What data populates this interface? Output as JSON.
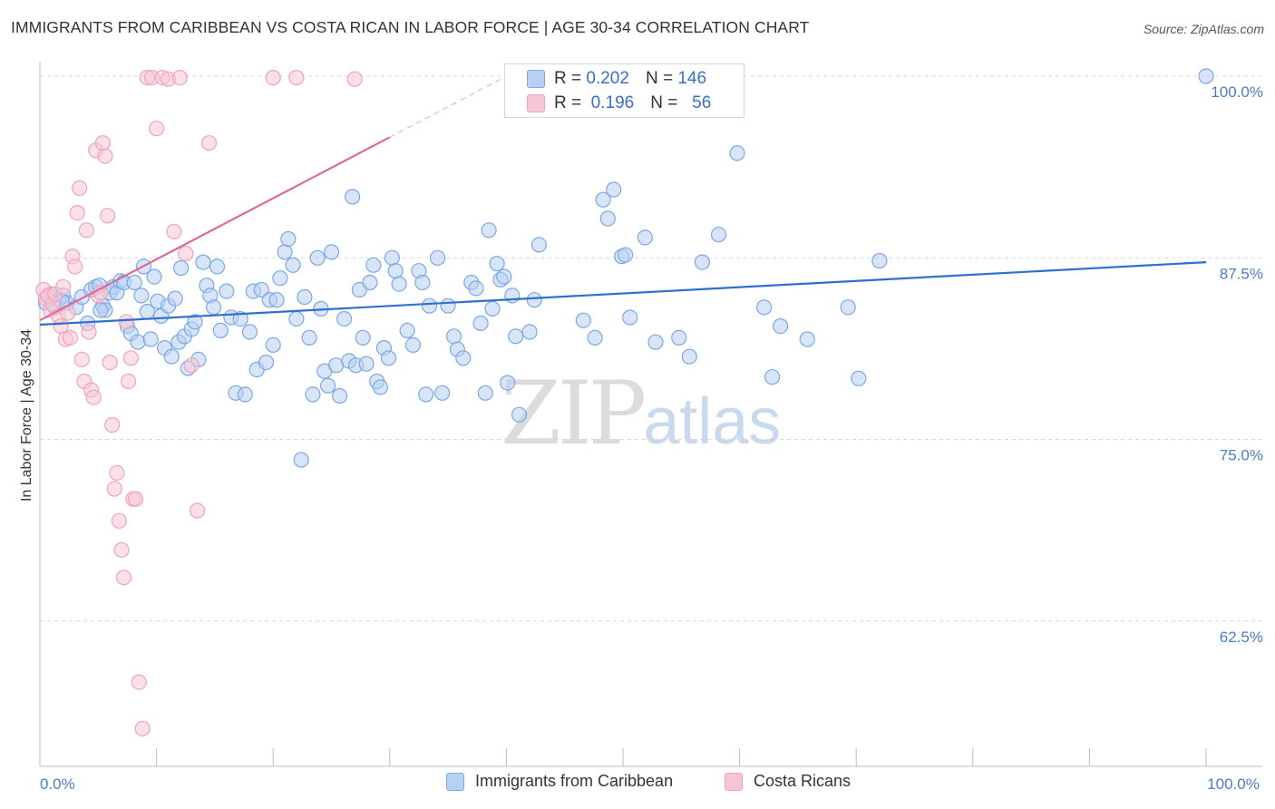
{
  "header": {
    "title": "IMMIGRANTS FROM CARIBBEAN VS COSTA RICAN IN LABOR FORCE | AGE 30-34 CORRELATION CHART",
    "source": "Source: ZipAtlas.com"
  },
  "legend": {
    "rows": [
      {
        "r_label": "R =",
        "r_value": "0.202",
        "n_label": "N =",
        "n_value": "146"
      },
      {
        "r_label": "R =",
        "r_value": "0.196",
        "n_label": "N =",
        "n_value": "56"
      }
    ]
  },
  "watermark": {
    "zip": "ZIP",
    "atlas": "atlas"
  },
  "chart_data": {
    "type": "scatter",
    "title": "IMMIGRANTS FROM CARIBBEAN VS COSTA RICAN IN LABOR FORCE | AGE 30-34 CORRELATION CHART",
    "xlabel": "",
    "ylabel": "In Labor Force | Age 30-34",
    "xlim": [
      0,
      100
    ],
    "ylim": [
      52.5,
      101.5
    ],
    "x_tick_labels": [
      {
        "value": 0,
        "label": "0.0%"
      },
      {
        "value": 100,
        "label": "100.0%"
      }
    ],
    "y_tick_labels": [
      {
        "value": 100,
        "label": "100.0%"
      },
      {
        "value": 87.5,
        "label": "87.5%"
      },
      {
        "value": 75,
        "label": "75.0%"
      },
      {
        "value": 62.5,
        "label": "62.5%"
      }
    ],
    "legend_position": "bottom-center",
    "series": [
      {
        "name": "Immigrants from Caribbean",
        "color": "#7aa8e6",
        "fill": "#b8d0f2",
        "line_color": "#2f6fcf",
        "r": 0.202,
        "n": 146,
        "trend": {
          "x": [
            0,
            100
          ],
          "y": [
            82.9,
            87.2
          ]
        },
        "points": [
          [
            0.5,
            84.4
          ],
          [
            0.8,
            84.8
          ],
          [
            1.0,
            85.0
          ],
          [
            1.3,
            84.1
          ],
          [
            1.6,
            84.6
          ],
          [
            2.0,
            84.9
          ],
          [
            2.3,
            84.4
          ],
          [
            3.1,
            84.1
          ],
          [
            3.6,
            84.8
          ],
          [
            4.1,
            83.0
          ],
          [
            4.4,
            85.3
          ],
          [
            4.8,
            85.5
          ],
          [
            5.1,
            85.6
          ],
          [
            5.4,
            84.2
          ],
          [
            5.6,
            83.9
          ],
          [
            6.0,
            85.1
          ],
          [
            6.3,
            85.5
          ],
          [
            6.6,
            85.1
          ],
          [
            6.9,
            85.9
          ],
          [
            7.2,
            85.8
          ],
          [
            7.5,
            82.8
          ],
          [
            7.8,
            82.3
          ],
          [
            8.1,
            85.8
          ],
          [
            8.4,
            81.7
          ],
          [
            8.7,
            84.9
          ],
          [
            8.9,
            86.9
          ],
          [
            9.2,
            83.8
          ],
          [
            9.5,
            81.9
          ],
          [
            9.8,
            86.2
          ],
          [
            10.1,
            84.5
          ],
          [
            10.4,
            83.5
          ],
          [
            10.7,
            81.3
          ],
          [
            11.0,
            84.2
          ],
          [
            11.3,
            80.7
          ],
          [
            11.6,
            84.7
          ],
          [
            11.9,
            81.7
          ],
          [
            12.1,
            86.8
          ],
          [
            12.4,
            82.1
          ],
          [
            12.7,
            79.9
          ],
          [
            13.0,
            82.6
          ],
          [
            13.3,
            83.1
          ],
          [
            13.6,
            80.5
          ],
          [
            14.0,
            87.2
          ],
          [
            14.3,
            85.6
          ],
          [
            14.6,
            84.9
          ],
          [
            14.9,
            84.1
          ],
          [
            15.2,
            86.9
          ],
          [
            15.5,
            82.5
          ],
          [
            16.0,
            85.2
          ],
          [
            16.4,
            83.4
          ],
          [
            16.8,
            78.2
          ],
          [
            17.2,
            83.3
          ],
          [
            17.6,
            78.1
          ],
          [
            18.0,
            82.4
          ],
          [
            18.3,
            85.2
          ],
          [
            18.6,
            79.8
          ],
          [
            19.0,
            85.3
          ],
          [
            19.4,
            80.3
          ],
          [
            19.7,
            84.6
          ],
          [
            20.0,
            81.5
          ],
          [
            20.3,
            84.6
          ],
          [
            20.6,
            86.1
          ],
          [
            21.0,
            87.9
          ],
          [
            21.3,
            88.8
          ],
          [
            21.7,
            87.0
          ],
          [
            22.0,
            83.3
          ],
          [
            22.4,
            73.6
          ],
          [
            22.7,
            84.8
          ],
          [
            23.1,
            82.0
          ],
          [
            23.4,
            78.1
          ],
          [
            23.8,
            87.5
          ],
          [
            24.1,
            84.0
          ],
          [
            24.4,
            79.7
          ],
          [
            24.7,
            78.7
          ],
          [
            25.0,
            87.9
          ],
          [
            25.4,
            80.1
          ],
          [
            25.7,
            78.0
          ],
          [
            26.1,
            83.3
          ],
          [
            26.5,
            80.4
          ],
          [
            26.8,
            91.7
          ],
          [
            27.1,
            80.1
          ],
          [
            27.4,
            85.3
          ],
          [
            27.7,
            82.0
          ],
          [
            28.0,
            80.2
          ],
          [
            28.3,
            85.8
          ],
          [
            28.6,
            87.0
          ],
          [
            28.9,
            79.0
          ],
          [
            29.2,
            78.6
          ],
          [
            29.5,
            81.3
          ],
          [
            29.9,
            80.6
          ],
          [
            30.2,
            87.5
          ],
          [
            30.5,
            86.6
          ],
          [
            30.8,
            85.7
          ],
          [
            31.5,
            82.5
          ],
          [
            32.0,
            81.5
          ],
          [
            32.5,
            86.6
          ],
          [
            32.8,
            85.8
          ],
          [
            33.1,
            78.1
          ],
          [
            33.4,
            84.2
          ],
          [
            34.1,
            87.5
          ],
          [
            34.5,
            78.2
          ],
          [
            35.0,
            84.2
          ],
          [
            35.5,
            82.1
          ],
          [
            35.8,
            81.2
          ],
          [
            36.3,
            80.6
          ],
          [
            37.0,
            85.8
          ],
          [
            37.4,
            85.4
          ],
          [
            37.8,
            83.0
          ],
          [
            38.2,
            78.2
          ],
          [
            38.5,
            89.4
          ],
          [
            38.8,
            84.0
          ],
          [
            39.2,
            87.1
          ],
          [
            39.5,
            86.0
          ],
          [
            39.8,
            86.2
          ],
          [
            40.1,
            78.9
          ],
          [
            40.5,
            84.9
          ],
          [
            40.8,
            82.1
          ],
          [
            41.1,
            76.7
          ],
          [
            42.0,
            82.4
          ],
          [
            42.4,
            84.6
          ],
          [
            42.8,
            88.4
          ],
          [
            46.6,
            83.2
          ],
          [
            47.6,
            82.0
          ],
          [
            48.3,
            91.5
          ],
          [
            48.7,
            90.2
          ],
          [
            49.2,
            92.2
          ],
          [
            49.9,
            87.6
          ],
          [
            50.2,
            87.7
          ],
          [
            50.6,
            83.4
          ],
          [
            51.9,
            88.9
          ],
          [
            52.8,
            81.7
          ],
          [
            54.8,
            82.0
          ],
          [
            55.7,
            80.7
          ],
          [
            56.8,
            87.2
          ],
          [
            58.2,
            89.1
          ],
          [
            59.8,
            94.7
          ],
          [
            62.1,
            84.1
          ],
          [
            62.8,
            79.3
          ],
          [
            63.5,
            82.8
          ],
          [
            65.8,
            81.9
          ],
          [
            69.3,
            84.1
          ],
          [
            70.2,
            79.2
          ],
          [
            72.0,
            87.3
          ],
          [
            100.0,
            100.0
          ],
          [
            1.9,
            84.5
          ],
          [
            5.2,
            83.9
          ]
        ]
      },
      {
        "name": "Costa Ricans",
        "color": "#f0a3bd",
        "fill": "#f7c6d6",
        "line_color": "#e06a96",
        "r": 0.196,
        "n": 56,
        "trend": {
          "x": [
            0,
            30
          ],
          "y": [
            83.2,
            95.8
          ]
        },
        "trend_extension": {
          "x": [
            30,
            40
          ],
          "y": [
            95.8,
            100.0
          ]
        },
        "points": [
          [
            0.3,
            85.3
          ],
          [
            0.5,
            84.7
          ],
          [
            0.7,
            84.9
          ],
          [
            0.9,
            83.9
          ],
          [
            1.1,
            84.3
          ],
          [
            1.3,
            85.0
          ],
          [
            1.6,
            83.5
          ],
          [
            1.8,
            82.8
          ],
          [
            2.0,
            85.5
          ],
          [
            2.2,
            81.9
          ],
          [
            2.4,
            83.7
          ],
          [
            2.6,
            82.0
          ],
          [
            2.8,
            87.6
          ],
          [
            3.0,
            86.9
          ],
          [
            3.2,
            90.6
          ],
          [
            3.4,
            92.3
          ],
          [
            3.6,
            80.5
          ],
          [
            3.8,
            79.0
          ],
          [
            4.0,
            89.4
          ],
          [
            4.2,
            82.4
          ],
          [
            4.4,
            78.4
          ],
          [
            4.6,
            77.9
          ],
          [
            4.8,
            94.9
          ],
          [
            5.0,
            84.9
          ],
          [
            5.2,
            85.1
          ],
          [
            5.4,
            95.4
          ],
          [
            5.6,
            94.5
          ],
          [
            5.8,
            90.4
          ],
          [
            6.0,
            80.3
          ],
          [
            6.2,
            76.0
          ],
          [
            6.4,
            71.6
          ],
          [
            6.6,
            72.7
          ],
          [
            6.8,
            69.4
          ],
          [
            7.0,
            67.4
          ],
          [
            7.2,
            65.5
          ],
          [
            7.4,
            83.1
          ],
          [
            7.6,
            79.0
          ],
          [
            7.8,
            80.6
          ],
          [
            8.0,
            70.9
          ],
          [
            8.2,
            70.9
          ],
          [
            8.5,
            58.3
          ],
          [
            8.8,
            55.1
          ],
          [
            9.2,
            99.9
          ],
          [
            9.6,
            99.9
          ],
          [
            10.0,
            96.4
          ],
          [
            10.5,
            99.9
          ],
          [
            11.0,
            99.8
          ],
          [
            11.5,
            89.3
          ],
          [
            12.0,
            99.9
          ],
          [
            12.5,
            87.8
          ],
          [
            13.0,
            80.1
          ],
          [
            13.5,
            70.1
          ],
          [
            14.5,
            95.4
          ],
          [
            20.0,
            99.9
          ],
          [
            22.0,
            99.9
          ],
          [
            27.0,
            99.8
          ]
        ]
      }
    ]
  }
}
